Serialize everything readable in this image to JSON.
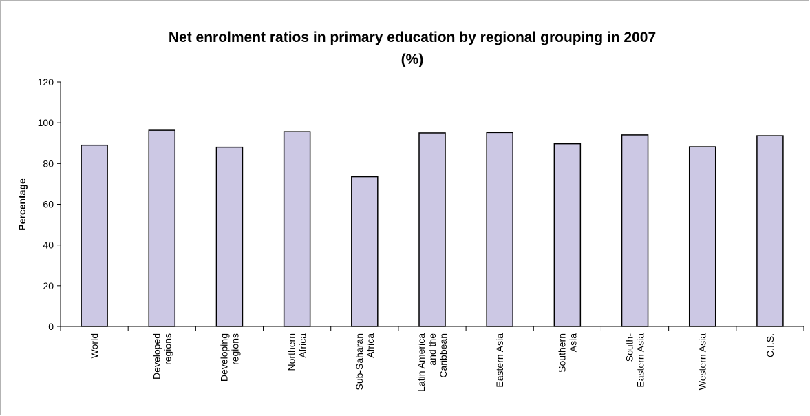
{
  "chart_data": {
    "type": "bar",
    "title": "Net enrolment ratios in primary education by regional grouping in 2007",
    "subtitle": "(%)",
    "xlabel": "",
    "ylabel": "Percentage",
    "ylim": [
      0,
      120
    ],
    "yticks": [
      0,
      20,
      40,
      60,
      80,
      100,
      120
    ],
    "grid": false,
    "legend": "none",
    "bar_color": "#ccc8e4",
    "bar_stroke": "#000000",
    "categories": [
      [
        "World"
      ],
      [
        "Developed",
        "regions"
      ],
      [
        "Developing",
        "regions"
      ],
      [
        "Northern",
        "Africa"
      ],
      [
        "Sub-Saharan",
        "Africa"
      ],
      [
        "Latin America",
        "and the",
        "Caribbean"
      ],
      [
        "Eastern Asia"
      ],
      [
        "Southern",
        "Asia"
      ],
      [
        "South-",
        "Eastern Asia"
      ],
      [
        "Western Asia"
      ],
      [
        "C.I.S."
      ]
    ],
    "values": [
      89,
      96.3,
      88,
      95.6,
      73.5,
      95,
      95.2,
      89.7,
      94,
      88.2,
      93.6
    ]
  }
}
